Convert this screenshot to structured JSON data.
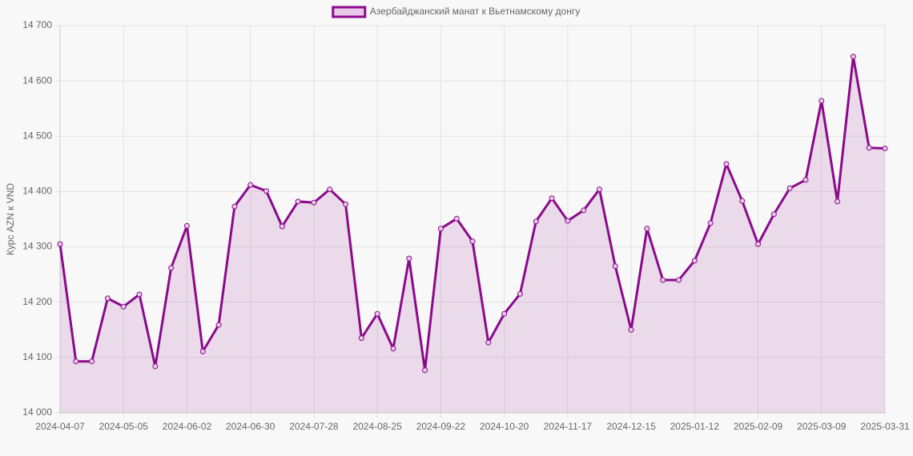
{
  "chart_data": {
    "type": "line",
    "y_label": "Курс AZN к VND",
    "categories": [
      "2024-04-07",
      null,
      null,
      null,
      "2024-05-05",
      null,
      null,
      null,
      "2024-06-02",
      null,
      null,
      null,
      "2024-06-30",
      null,
      null,
      null,
      "2024-07-28",
      null,
      null,
      null,
      "2024-08-25",
      null,
      null,
      null,
      "2024-09-22",
      null,
      null,
      null,
      "2024-10-20",
      null,
      null,
      null,
      "2024-11-17",
      null,
      null,
      null,
      "2024-12-15",
      null,
      null,
      null,
      "2025-01-12",
      null,
      null,
      null,
      "2025-02-09",
      null,
      null,
      null,
      "2025-03-09",
      null,
      null,
      null,
      "2025-03-31"
    ],
    "series": [
      {
        "name": "Азербайджанский манат к Вьетнамскому донгу",
        "color": "#8b0a8b",
        "values": [
          14305,
          14093,
          14093,
          14207,
          14192,
          14214,
          14084,
          14262,
          14338,
          14111,
          14159,
          14373,
          14412,
          14401,
          14337,
          14382,
          14380,
          14404,
          14377,
          14135,
          14179,
          14116,
          14279,
          14077,
          14333,
          14351,
          14310,
          14127,
          14179,
          14215,
          14346,
          14388,
          14347,
          14366,
          14404,
          14265,
          14150,
          14333,
          14240,
          14240,
          14275,
          14343,
          14450,
          14383,
          14305,
          14359,
          14406,
          14421,
          14564,
          14382,
          14644,
          14479,
          14478
        ]
      }
    ],
    "ylim": [
      14000,
      14700
    ],
    "yticks": [
      {
        "value": 14000,
        "label": "14 000"
      },
      {
        "value": 14100,
        "label": "14 100"
      },
      {
        "value": 14200,
        "label": "14 200"
      },
      {
        "value": 14300,
        "label": "14 300"
      },
      {
        "value": 14400,
        "label": "14 400"
      },
      {
        "value": 14500,
        "label": "14 500"
      },
      {
        "value": 14600,
        "label": "14 600"
      },
      {
        "value": 14700,
        "label": "14 700"
      }
    ],
    "grid": true,
    "fill": true
  }
}
